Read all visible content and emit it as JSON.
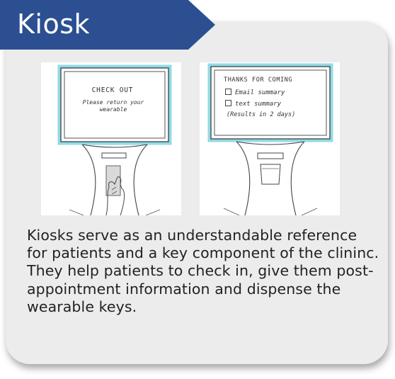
{
  "header": {
    "title": "Kiosk",
    "colors": {
      "banner": "#2b4f91",
      "card": "#ececec",
      "screen_glow": "#7fd3e0"
    }
  },
  "sketches": {
    "checkout": {
      "line1": "CHECK OUT",
      "line2": "Please return your wearable"
    },
    "thanks": {
      "line1": "THANKS FOR COMING",
      "line2": "Email summary",
      "line3": "text summary",
      "line4": "(Results in 2 days)"
    }
  },
  "description": "Kiosks serve as an understandable reference for patients and a key component of the clininc. They help patients to check in, give them post-appointment information and dispense the wearable keys."
}
